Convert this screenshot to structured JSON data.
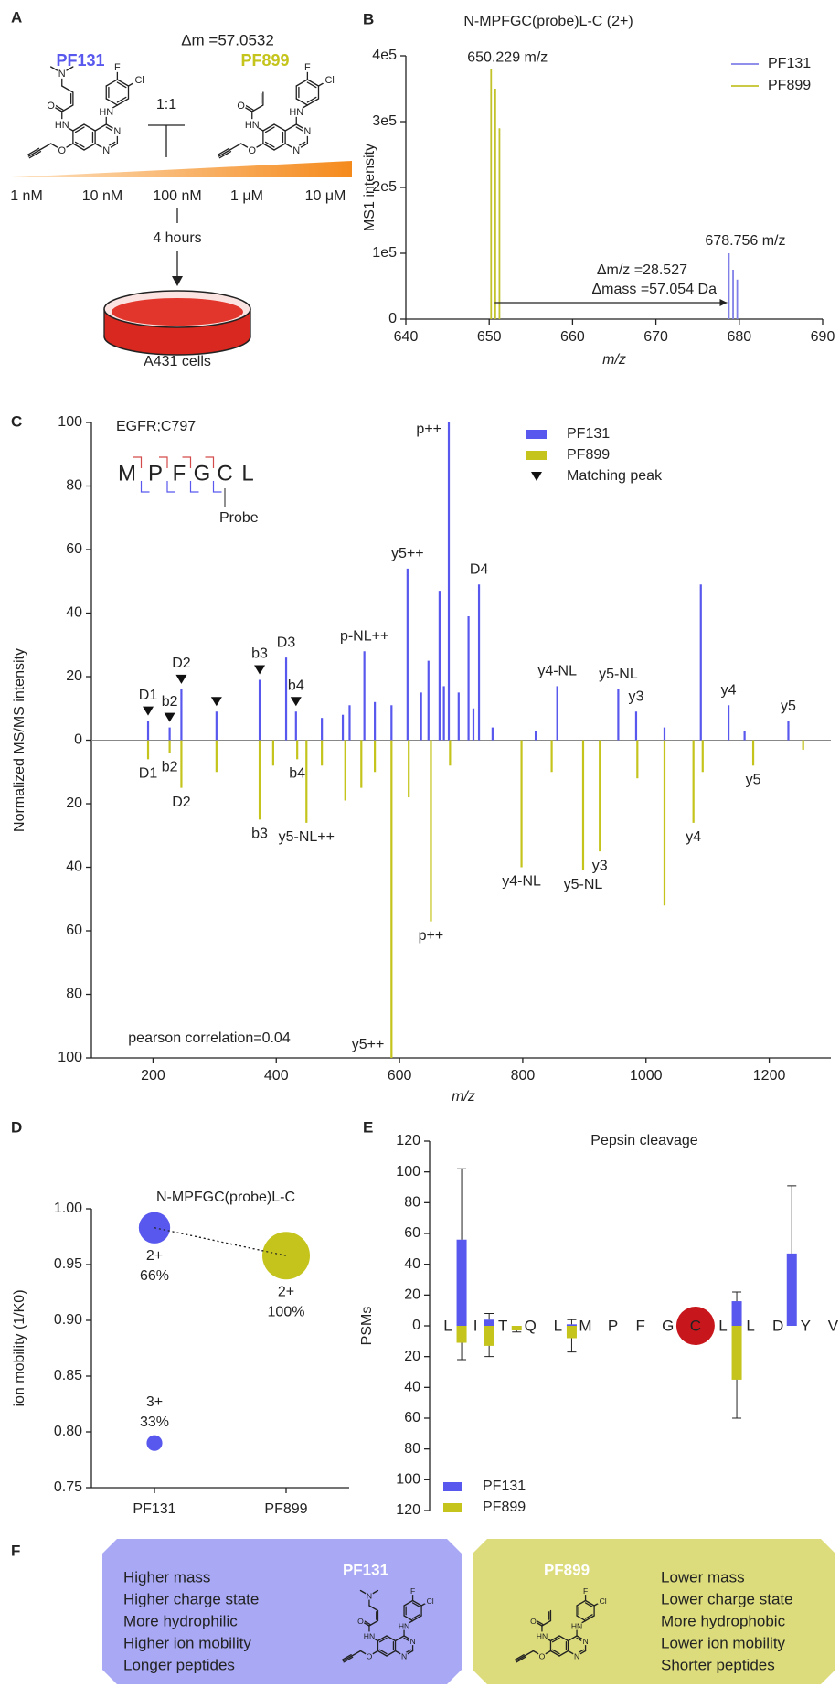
{
  "panel_labels": [
    "A",
    "B",
    "C",
    "D",
    "E",
    "F"
  ],
  "panel_a": {
    "delta_m": "Δm =57.0532",
    "compounds": [
      "PF131",
      "PF899"
    ],
    "ratio": "1:1",
    "concentrations": [
      "1 nM",
      "10 nM",
      "100 nM",
      "1 μM",
      "10 μM"
    ],
    "time": "4 hours",
    "cells": "A431 cells"
  },
  "structures": {
    "PF131": {
      "atoms": [
        "HN",
        "N",
        "N",
        "HN",
        "F",
        "Cl",
        "O",
        "O",
        "N"
      ]
    },
    "PF899": {
      "atoms": [
        "HN",
        "N",
        "N",
        "HN",
        "F",
        "Cl",
        "O",
        "O"
      ]
    }
  },
  "chart_data": [
    {
      "type": "spectrum",
      "title": "N-MPFGC(probe)L-C (2+)",
      "x_label": "m/z",
      "y_label": "MS1 intensity",
      "xlim": [
        640,
        690
      ],
      "xticks": [
        640,
        650,
        660,
        670,
        680,
        690
      ],
      "ylim": [
        0,
        400000
      ],
      "yticks": [
        0,
        {
          "value": 100000,
          "label": "1e5"
        },
        {
          "value": 200000,
          "label": "2e5"
        },
        {
          "value": 300000,
          "label": "3e5"
        },
        {
          "value": 400000,
          "label": "4e5"
        }
      ],
      "legend": "upper right",
      "series": [
        {
          "name": "PF131",
          "color": "#8080e8",
          "x": [
            678.756,
            679.258,
            679.76
          ],
          "values": [
            100000,
            75000,
            60000
          ]
        },
        {
          "name": "PF899",
          "color": "#c2c22a",
          "x": [
            650.229,
            650.731,
            651.232
          ],
          "values": [
            380000,
            350000,
            290000
          ]
        }
      ],
      "annotations": [
        "650.229 m/z",
        "678.756 m/z",
        "Δm/z =28.527",
        "Δmass =57.054 Da"
      ]
    },
    {
      "type": "mirror_spectrum",
      "x_label": "m/z",
      "y_label": "Normalized MS/MS intensity",
      "xlim": [
        100,
        1300
      ],
      "xticks": [
        200,
        400,
        600,
        800,
        1000,
        1200
      ],
      "ylim": [
        -100,
        100
      ],
      "yticks": [
        {
          "value": -100,
          "label": "100"
        },
        {
          "value": -80,
          "label": "80"
        },
        {
          "value": -60,
          "label": "60"
        },
        {
          "value": -40,
          "label": "40"
        },
        {
          "value": -20,
          "label": "20"
        },
        0,
        20,
        40,
        60,
        80,
        100
      ],
      "peptide_id": "EGFR;C797",
      "peptide": [
        "M",
        "P",
        "F",
        "G",
        "C",
        "L"
      ],
      "probe_label": "Probe",
      "correlation": "pearson correlation=0.04",
      "series": [
        {
          "name": "PF131",
          "color": "#5858ee",
          "x": [
            192,
            227,
            246,
            303,
            373,
            416,
            432,
            474,
            508,
            519,
            543,
            560,
            587,
            613,
            635,
            647,
            665,
            672,
            680,
            696,
            712,
            720,
            729,
            751,
            821,
            856,
            955,
            984,
            1030,
            1089,
            1134,
            1160,
            1231
          ],
          "values": [
            6,
            4,
            16,
            9,
            19,
            26,
            9,
            7,
            8,
            11,
            28,
            12,
            11,
            54,
            15,
            25,
            47,
            17,
            100,
            15,
            39,
            10,
            49,
            4,
            3,
            17,
            16,
            9,
            4,
            49,
            11,
            3,
            6
          ],
          "labels": [
            "D1",
            "b2",
            "D2",
            null,
            "b3",
            "D3",
            "b4",
            null,
            null,
            null,
            "p-NL++",
            null,
            null,
            "y5++",
            null,
            null,
            null,
            null,
            "p++",
            null,
            null,
            null,
            "D4",
            null,
            null,
            "y4-NL",
            "y5-NL",
            "y3",
            null,
            null,
            "y4",
            null,
            "y5"
          ]
        },
        {
          "name": "PF899",
          "color": "#c4c41c",
          "x": [
            192,
            227,
            246,
            303,
            373,
            395,
            434,
            449,
            474,
            512,
            538,
            560,
            587,
            615,
            651,
            682,
            798,
            847,
            898,
            925,
            986,
            1030,
            1077,
            1092,
            1174,
            1255
          ],
          "values": [
            -6,
            -4,
            -15,
            -10,
            -25,
            -8,
            -6,
            -26,
            -8,
            -19,
            -15,
            -10,
            -100,
            -18,
            -57,
            -8,
            -40,
            -10,
            -41,
            -35,
            -12,
            -52,
            -26,
            -10,
            -8,
            -3
          ],
          "labels": [
            "D1",
            "b2",
            "D2",
            null,
            "b3",
            null,
            "b4",
            "y5-NL++",
            null,
            null,
            null,
            null,
            "y5++",
            null,
            "p++",
            null,
            "y4-NL",
            null,
            "y5-NL",
            "y3",
            null,
            null,
            "y4",
            null,
            "y5",
            null
          ]
        }
      ],
      "matching_peaks": {
        "name": "Matching peak",
        "x": [
          192,
          227,
          246,
          303,
          373,
          432
        ]
      }
    },
    {
      "type": "bubble",
      "title": "N-MPFGC(probe)L-C",
      "y_label": "ion mobility (1/K0)",
      "categories": [
        "PF131",
        "PF899"
      ],
      "ylim": [
        0.75,
        1.0
      ],
      "yticks": [
        0.75,
        {
          "value": 0.8,
          "label": "0.80"
        },
        0.85,
        {
          "value": 0.9,
          "label": "0.90"
        },
        0.95,
        {
          "value": 1.0,
          "label": "1.00"
        }
      ],
      "points": [
        {
          "x": "PF131",
          "y": 0.983,
          "size": 66,
          "label": "2+",
          "size_label": "66%",
          "color": "#5858ee"
        },
        {
          "x": "PF899",
          "y": 0.958,
          "size": 100,
          "label": "2+",
          "size_label": "100%",
          "color": "#c4c41c"
        },
        {
          "x": "PF131",
          "y": 0.79,
          "size": 33,
          "label": "3+",
          "size_label": "33%",
          "color": "#5858ee"
        }
      ]
    },
    {
      "type": "mirror_bar",
      "title": "Pepsin cleavage",
      "y_label": "PSMs",
      "categories": [
        "L",
        "I",
        "T",
        "Q",
        "L",
        "M",
        "P",
        "F",
        "G",
        "C",
        "L",
        "L",
        "D",
        "Y",
        "V"
      ],
      "highlight_index": 9,
      "highlight_color": "#c8161d",
      "ylim": [
        -120,
        120
      ],
      "yticks": [
        {
          "value": -120,
          "label": "120"
        },
        {
          "value": -100,
          "label": "100"
        },
        {
          "value": -80,
          "label": "80"
        },
        {
          "value": -60,
          "label": "60"
        },
        {
          "value": -40,
          "label": "40"
        },
        {
          "value": -20,
          "label": "20"
        },
        0,
        20,
        40,
        60,
        80,
        100,
        120
      ],
      "legend": "lower left",
      "series": [
        {
          "name": "PF131",
          "color": "#5858ee",
          "values": [
            56,
            4,
            null,
            null,
            1,
            null,
            null,
            null,
            null,
            null,
            16,
            null,
            47,
            null,
            null
          ],
          "errors": [
            46,
            4,
            null,
            null,
            3,
            null,
            null,
            null,
            null,
            null,
            6,
            null,
            44,
            null,
            null
          ]
        },
        {
          "name": "PF899",
          "color": "#c4c41c",
          "values": [
            -11,
            -13,
            -3,
            null,
            -8,
            null,
            null,
            null,
            null,
            null,
            -35,
            null,
            null,
            null,
            null
          ],
          "errors": [
            11,
            7,
            1,
            null,
            9,
            null,
            null,
            null,
            null,
            null,
            25,
            null,
            null,
            null,
            null
          ]
        }
      ]
    }
  ],
  "panel_f": {
    "boxes": [
      {
        "compound": "PF131",
        "color": "#a8a8f4",
        "lines": [
          "Higher mass",
          "Higher charge state",
          "More hydrophilic",
          "Higher ion mobility",
          "Longer peptides"
        ]
      },
      {
        "compound": "PF899",
        "color": "#dcdc7c",
        "lines": [
          "Lower mass",
          "Lower charge state",
          "More hydrophobic",
          "Lower ion mobility",
          "Shorter peptides"
        ]
      }
    ]
  }
}
